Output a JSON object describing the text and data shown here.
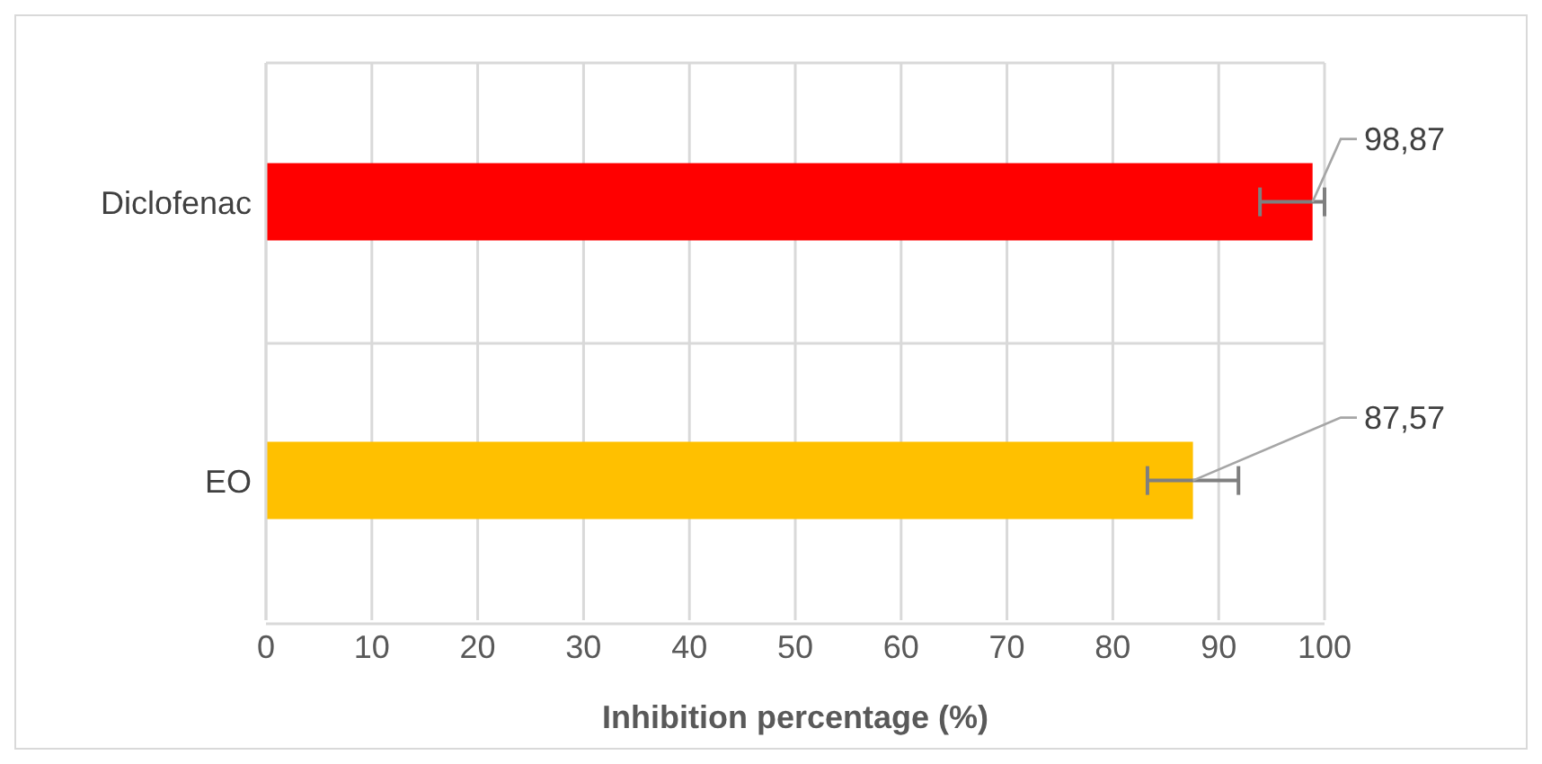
{
  "chart_data": {
    "type": "bar",
    "orientation": "horizontal",
    "xlabel": "Inhibition percentage (%)",
    "categories": [
      "Diclofenac",
      "EO"
    ],
    "values": [
      98.87,
      87.57
    ],
    "colors": [
      "#ff0000",
      "#ffc000"
    ],
    "errors": [
      [
        93.9,
        100
      ],
      4.3
    ],
    "value_labels": [
      "98,87",
      "87,57"
    ],
    "xlim": [
      0,
      100
    ],
    "xticks": [
      0,
      10,
      20,
      30,
      40,
      50,
      60,
      70,
      80,
      90,
      100
    ],
    "grid": true
  }
}
